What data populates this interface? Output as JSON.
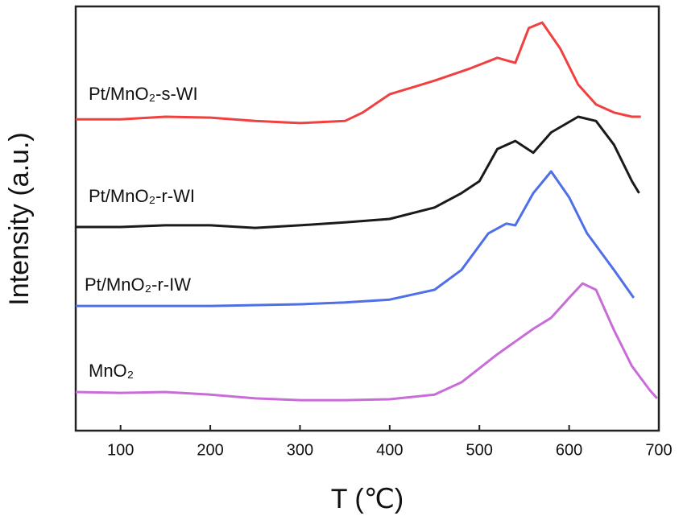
{
  "chart_data": {
    "type": "line",
    "xlabel": "T (℃)",
    "ylabel": "Intensity (a.u.)",
    "xlim": [
      50,
      700
    ],
    "xticks": [
      100,
      200,
      300,
      400,
      500,
      600,
      700
    ],
    "ylim": [
      0,
      100
    ],
    "series": [
      {
        "name": "Pt/MnO₂-s-WI",
        "color": "#f0403f",
        "x": [
          50,
          100,
          150,
          200,
          250,
          300,
          350,
          370,
          400,
          450,
          490,
          520,
          540,
          555,
          570,
          590,
          610,
          630,
          650,
          670,
          680
        ],
        "values": [
          73.4,
          73.4,
          74,
          73.8,
          73,
          72.5,
          73,
          75,
          79.3,
          82.5,
          85.4,
          87.9,
          86.7,
          94.9,
          96.2,
          90.1,
          81.6,
          76.9,
          75,
          74,
          74
        ]
      },
      {
        "name": "Pt/MnO₂-r-WI",
        "color": "#1a1a1a",
        "x": [
          50,
          100,
          150,
          200,
          250,
          300,
          350,
          400,
          450,
          480,
          500,
          520,
          540,
          560,
          580,
          610,
          630,
          650,
          670,
          678
        ],
        "values": [
          48,
          48,
          48.4,
          48.4,
          47.8,
          48.4,
          49.1,
          49.9,
          52.6,
          56,
          58.8,
          66.4,
          68.3,
          65.5,
          70.3,
          74,
          73,
          67.4,
          58.8,
          56
        ]
      },
      {
        "name": "Pt/MnO₂-r-IW",
        "color": "#4f6fe6",
        "x": [
          50,
          100,
          200,
          300,
          350,
          400,
          450,
          480,
          510,
          530,
          540,
          560,
          580,
          600,
          620,
          650,
          672
        ],
        "values": [
          29.4,
          29.4,
          29.4,
          29.8,
          30.2,
          30.9,
          33.2,
          37.9,
          46.5,
          48.8,
          48.4,
          56,
          61.1,
          55,
          46.5,
          37.9,
          31.3
        ]
      },
      {
        "name": "MnO₂",
        "color": "#c86dd7",
        "x": [
          50,
          100,
          150,
          200,
          250,
          300,
          350,
          400,
          450,
          480,
          520,
          540,
          560,
          580,
          600,
          615,
          630,
          650,
          670,
          690,
          698
        ],
        "values": [
          9.1,
          8.9,
          9.1,
          8.5,
          7.6,
          7.2,
          7.2,
          7.4,
          8.5,
          11.4,
          18,
          21,
          24,
          26.6,
          31.3,
          34.7,
          33.2,
          23.7,
          15.2,
          9.5,
          7.6
        ]
      }
    ]
  }
}
